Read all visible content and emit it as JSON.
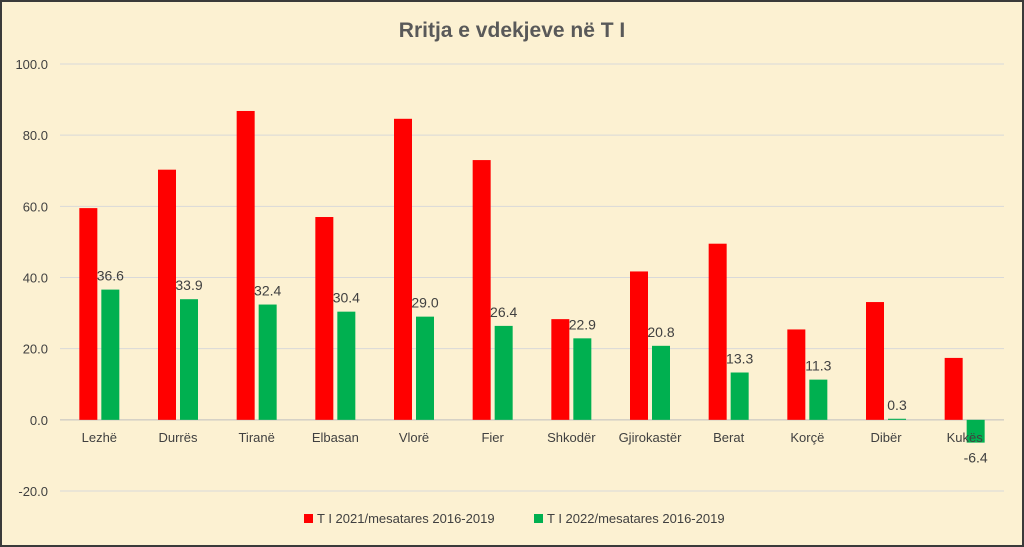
{
  "chart_data": {
    "type": "bar",
    "title": "Rritja e vdekjeve në T I",
    "categories": [
      "Lezhë",
      "Durrës",
      "Tiranë",
      "Elbasan",
      "Vlorë",
      "Fier",
      "Shkodër",
      "Gjirokastër",
      "Berat",
      "Korçë",
      "Dibër",
      "Kukës"
    ],
    "series": [
      {
        "name": "T I 2021/mesatares 2016-2019",
        "color": "#ff0000",
        "values": [
          59.5,
          70.3,
          86.8,
          57.0,
          84.6,
          73.0,
          28.3,
          41.7,
          49.5,
          25.4,
          33.1,
          17.4
        ]
      },
      {
        "name": "T I 2022/mesatares 2016-2019",
        "color": "#00b050",
        "values": [
          36.6,
          33.9,
          32.4,
          30.4,
          29.0,
          26.4,
          22.9,
          20.8,
          13.3,
          11.3,
          0.3,
          -6.4
        ],
        "labels": [
          "36.6",
          "33.9",
          "32.4",
          "30.4",
          "29.0",
          "26.4",
          "22.9",
          "20.8",
          "13.3",
          "11.3",
          "0.3",
          "-6.4"
        ]
      }
    ],
    "yticks": [
      -20,
      0,
      20,
      40,
      60,
      80,
      100
    ],
    "ytick_labels": [
      "-20.0",
      "0.0",
      "20.0",
      "40.0",
      "60.0",
      "80.0",
      "100.0"
    ],
    "ylim": [
      -20,
      100
    ],
    "grid": true,
    "legend_position": "bottom"
  }
}
